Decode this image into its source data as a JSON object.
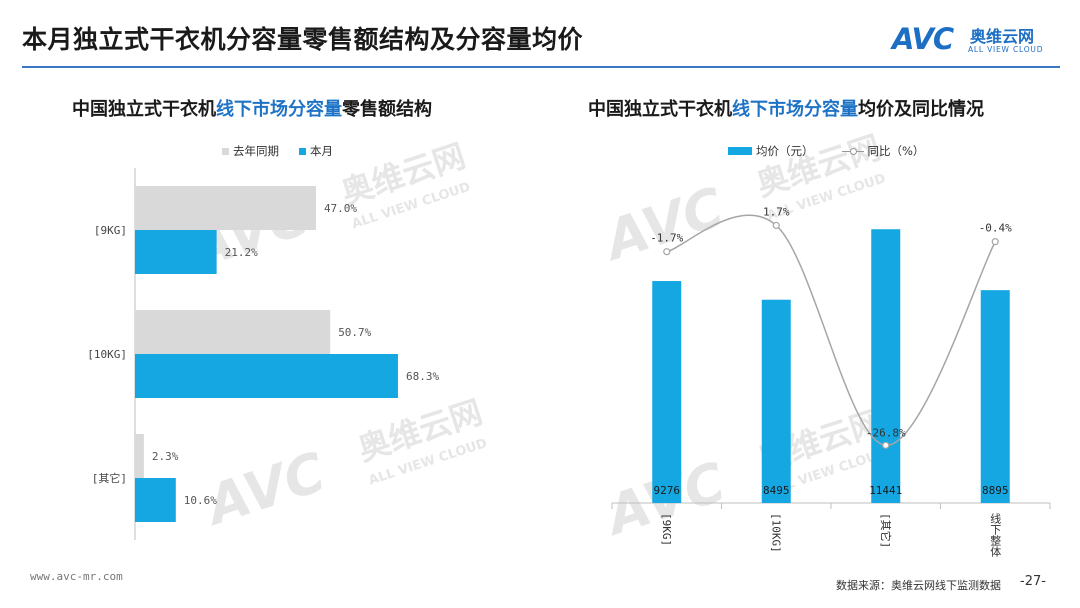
{
  "page": {
    "title": "本月独立式干衣机分容量零售额结构及分容量均价",
    "logo_mark": "AVC",
    "logo_cn": "奥维云网",
    "logo_en": "ALL VIEW CLOUD",
    "footer_url": "www.avc-mr.com",
    "footer_source": "数据来源：奥维云网线下监测数据",
    "page_number": "-27-",
    "accent_color": "#3a78c4"
  },
  "left_chart": {
    "title_pre": "中国独立式干衣机",
    "title_highlight": "线下市场分容量",
    "title_post": "零售额结构"
  },
  "right_chart": {
    "title_pre": "中国独立式干衣机",
    "title_highlight": "线下市场分容量",
    "title_post": "均价及同比情况"
  },
  "chart_data": [
    {
      "type": "bar",
      "orientation": "horizontal",
      "categories": [
        "[9KG]",
        "[10KG]",
        "[其它]"
      ],
      "series": [
        {
          "name": "去年同期",
          "color": "#d9d9d9",
          "values": [
            47.0,
            50.7,
            2.3
          ],
          "labels": [
            "47.0%",
            "50.7%",
            "2.3%"
          ]
        },
        {
          "name": "本月",
          "color": "#14a7e2",
          "values": [
            21.2,
            68.3,
            10.6
          ],
          "labels": [
            "21.2%",
            "68.3%",
            "10.6%"
          ]
        }
      ],
      "unit": "%",
      "xlim": [
        0,
        100
      ],
      "grid": false,
      "legend": "top"
    },
    {
      "type": "bar",
      "combo": "bar+line",
      "categories": [
        "[9KG]",
        "[10KG]",
        "[其它]",
        "线下整体"
      ],
      "series": [
        {
          "name": "均价（元）",
          "kind": "bar",
          "axis": "left",
          "color": "#14a7e2",
          "values": [
            9276,
            8495,
            11441,
            8895
          ],
          "labels": [
            "9276",
            "8495",
            "11441",
            "8895"
          ]
        },
        {
          "name": "同比（%）",
          "kind": "line",
          "axis": "right",
          "color": "#a6a6a6",
          "values": [
            -1.7,
            1.7,
            -26.8,
            -0.4
          ],
          "labels": [
            "-1.7%",
            "1.7%",
            "-26.8%",
            "-0.4%"
          ]
        }
      ],
      "ylim_left": [
        0,
        14000
      ],
      "ylim_right": [
        -30,
        5
      ],
      "grid": false,
      "legend": "top"
    }
  ]
}
